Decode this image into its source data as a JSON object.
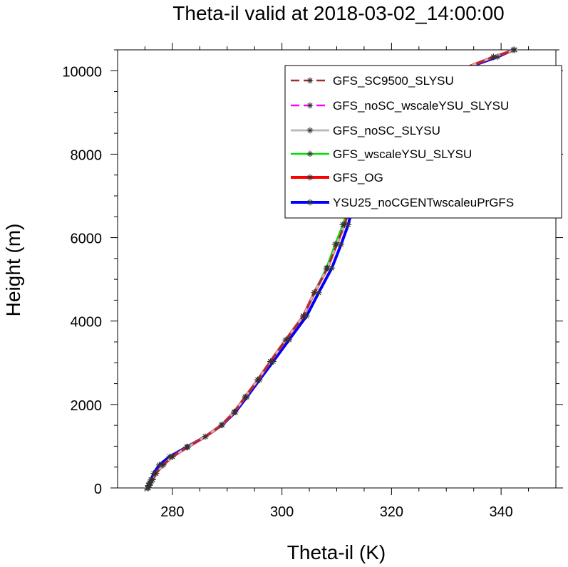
{
  "chart_data": {
    "type": "line",
    "title": "Theta-il valid at 2018-03-02_14:00:00",
    "xlabel": "Theta-il (K)",
    "ylabel": "Height (m)",
    "xlim": [
      270,
      350
    ],
    "ylim": [
      0,
      10500
    ],
    "xticks": [
      "280",
      "300",
      "320",
      "340"
    ],
    "yticks": [
      "0",
      "2000",
      "4000",
      "6000",
      "8000",
      "10000"
    ],
    "legend_position": "top-right",
    "marker": "asterisk",
    "series": [
      {
        "name": "GFS_SC9500_SLYSU",
        "color": "#a52a2a",
        "dash": "dashed",
        "x": [
          275.6,
          275.8,
          276.0,
          276.4,
          277.0,
          278.3,
          280.0,
          282.8,
          286.0,
          289.0,
          291.3,
          293.3,
          295.6,
          297.9,
          300.7,
          303.9,
          305.9,
          308.3,
          310.0,
          311.4,
          312.5,
          313.3,
          314.0,
          314.6,
          315.2,
          316.8,
          320.3,
          325.8,
          331.8,
          338.6,
          342.5
        ],
        "y": [
          0,
          60,
          120,
          200,
          350,
          550,
          750,
          980,
          1230,
          1510,
          1820,
          2180,
          2590,
          3030,
          3550,
          4120,
          4680,
          5270,
          5840,
          6310,
          6790,
          7270,
          7740,
          8140,
          8500,
          8920,
          9300,
          9650,
          9980,
          10330,
          10500
        ]
      },
      {
        "name": "GFS_noSC_wscaleYSU_SLYSU",
        "color": "#ff00ff",
        "dash": "dashed",
        "x": [
          275.6,
          275.8,
          276.0,
          276.4,
          277.0,
          278.3,
          280.0,
          282.8,
          286.0,
          289.0,
          291.3,
          293.3,
          295.6,
          297.9,
          300.7,
          303.9,
          305.9,
          308.3,
          310.0,
          311.4,
          312.5,
          313.3,
          314.0,
          314.6,
          315.2,
          316.8,
          320.3,
          325.8,
          331.8,
          338.6,
          342.5
        ],
        "y": [
          0,
          60,
          120,
          200,
          350,
          550,
          750,
          980,
          1230,
          1510,
          1820,
          2180,
          2590,
          3030,
          3550,
          4120,
          4680,
          5270,
          5840,
          6310,
          6790,
          7270,
          7740,
          8140,
          8500,
          8920,
          9300,
          9650,
          9980,
          10330,
          10500
        ]
      },
      {
        "name": "GFS_noSC_SLYSU",
        "color": "#bbbbbb",
        "dash": "solid",
        "x": [
          275.6,
          275.8,
          276.0,
          276.4,
          277.0,
          278.3,
          280.0,
          282.8,
          286.0,
          289.0,
          291.3,
          293.3,
          295.6,
          297.9,
          300.7,
          303.9,
          305.9,
          308.3,
          310.0,
          311.4,
          312.5,
          313.3,
          314.0,
          314.6,
          315.2,
          316.8,
          320.3,
          325.8,
          331.8,
          338.6,
          342.5
        ],
        "y": [
          0,
          60,
          120,
          200,
          350,
          550,
          750,
          980,
          1230,
          1510,
          1820,
          2180,
          2590,
          3030,
          3550,
          4120,
          4680,
          5270,
          5840,
          6310,
          6790,
          7270,
          7740,
          8140,
          8500,
          8920,
          9300,
          9650,
          9980,
          10330,
          10500
        ]
      },
      {
        "name": "GFS_wscaleYSU_SLYSU",
        "color": "#00e000",
        "dash": "solid",
        "x": [
          275.6,
          275.8,
          276.0,
          276.4,
          277.0,
          278.3,
          280.0,
          282.8,
          286.0,
          289.0,
          291.3,
          293.3,
          295.6,
          297.9,
          300.7,
          303.9,
          305.9,
          308.1,
          309.7,
          311.1,
          312.3,
          313.2,
          314.0,
          314.6,
          315.2,
          316.8,
          320.3,
          325.8,
          331.8,
          338.6,
          342.5
        ],
        "y": [
          0,
          60,
          120,
          200,
          350,
          550,
          750,
          980,
          1230,
          1510,
          1820,
          2180,
          2590,
          3030,
          3550,
          4120,
          4680,
          5270,
          5840,
          6310,
          6790,
          7270,
          7740,
          8140,
          8500,
          8920,
          9300,
          9650,
          9980,
          10330,
          10500
        ]
      },
      {
        "name": "GFS_OG",
        "color": "#ff0000",
        "dash": "solid",
        "x": [
          275.6,
          275.8,
          276.0,
          276.4,
          277.0,
          278.3,
          280.0,
          282.8,
          286.0,
          289.0,
          291.3,
          293.3,
          295.6,
          297.9,
          300.7,
          303.9,
          305.9,
          308.3,
          310.0,
          311.4,
          312.5,
          313.3,
          314.0,
          314.6,
          315.2,
          316.8,
          320.3,
          325.8,
          331.8,
          338.6,
          342.5
        ],
        "y": [
          0,
          60,
          120,
          200,
          350,
          550,
          750,
          980,
          1230,
          1510,
          1820,
          2180,
          2590,
          3030,
          3550,
          4120,
          4680,
          5270,
          5840,
          6310,
          6790,
          7270,
          7740,
          8140,
          8500,
          8920,
          9300,
          9650,
          9980,
          10330,
          10500
        ]
      },
      {
        "name": "YSU25_noCGENTwscaleuPrGFS",
        "color": "#0000ff",
        "dash": "solid",
        "x": [
          275.4,
          275.6,
          275.8,
          276.1,
          276.6,
          277.6,
          279.5,
          282.6,
          286.0,
          289.1,
          291.5,
          293.6,
          295.9,
          298.4,
          301.3,
          304.5,
          306.7,
          309.1,
          310.8,
          312.1,
          313.0,
          313.8,
          314.5,
          315.1,
          315.7,
          317.5,
          320.6,
          326.0,
          331.8,
          339.3,
          342.2
        ],
        "y": [
          0,
          60,
          120,
          200,
          350,
          550,
          750,
          980,
          1230,
          1510,
          1820,
          2180,
          2590,
          3030,
          3550,
          4120,
          4680,
          5270,
          5840,
          6310,
          6790,
          7270,
          7740,
          8140,
          8500,
          8920,
          9300,
          9650,
          9980,
          10330,
          10500
        ]
      }
    ]
  }
}
